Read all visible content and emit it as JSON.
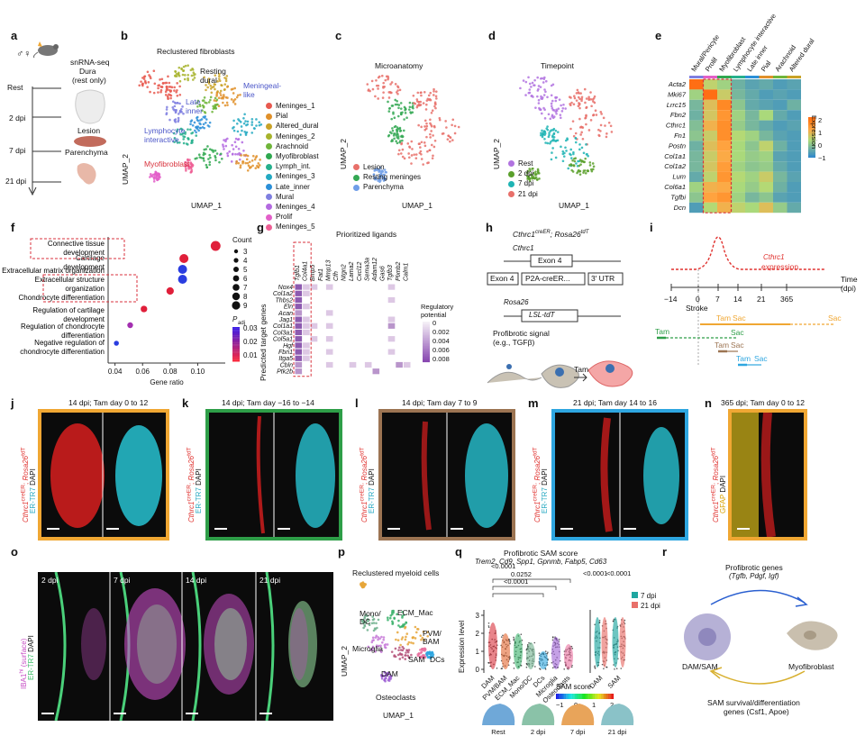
{
  "panels": {
    "a": {
      "label": "a",
      "sex": "♂♀",
      "method": "snRNA-seq",
      "dura": "Dura",
      "dura_note": "(rest only)",
      "lesion": "Lesion",
      "parenchyma": "Parenchyma",
      "timepoints": [
        "Rest",
        "2 dpi",
        "7 dpi",
        "21 dpi"
      ]
    },
    "b": {
      "label": "b",
      "title": "Reclustered fibroblasts",
      "xlabel": "UMAP_1",
      "ylabel": "UMAP_2",
      "annotations": [
        "Resting dural",
        "Meningeal-like",
        "Late inner",
        "Lymphocyte interactive",
        "Myofibroblast"
      ],
      "legend": [
        {
          "name": "Meninges_1",
          "color": "#e8594f"
        },
        {
          "name": "Pial",
          "color": "#e0902a"
        },
        {
          "name": "Altered_dural",
          "color": "#c9a227"
        },
        {
          "name": "Meninges_2",
          "color": "#a7b32c"
        },
        {
          "name": "Arachnoid",
          "color": "#6fb53a"
        },
        {
          "name": "Myofibroblast",
          "color": "#2fa84f"
        },
        {
          "name": "Lymph_int.",
          "color": "#26b08d"
        },
        {
          "name": "Meninges_3",
          "color": "#23a9c2"
        },
        {
          "name": "Late_inner",
          "color": "#2b8fd8"
        },
        {
          "name": "Mural",
          "color": "#7f7fe0"
        },
        {
          "name": "Meninges_4",
          "color": "#b36ae0"
        },
        {
          "name": "Prolif",
          "color": "#e35fc9"
        },
        {
          "name": "Meninges_5",
          "color": "#ee5f95"
        }
      ]
    },
    "c": {
      "label": "c",
      "title": "Microanatomy",
      "xlabel": "UMAP_1",
      "ylabel": "UMAP_2",
      "legend": [
        {
          "name": "Lesion",
          "color": "#e8706a"
        },
        {
          "name": "Resting meninges",
          "color": "#34a853"
        },
        {
          "name": "Parenchyma",
          "color": "#6f9de8"
        }
      ]
    },
    "d": {
      "label": "d",
      "title": "Timepoint",
      "xlabel": "UMAP_1",
      "ylabel": "UMAP_2",
      "legend": [
        {
          "name": "Rest",
          "color": "#b173e0"
        },
        {
          "name": "2 dpi",
          "color": "#5aa02c"
        },
        {
          "name": "7 dpi",
          "color": "#1fb4b4"
        },
        {
          "name": "21 dpi",
          "color": "#e8706a"
        }
      ]
    },
    "e": {
      "label": "e",
      "columns": [
        "Mural/Pericyte",
        "Prolif",
        "Myofibroblast",
        "Lymphocyte interactive",
        "Late inner",
        "Pial",
        "Arachnoid",
        "Altered dural"
      ],
      "col_colors": [
        "#7f7fe0",
        "#e35fc9",
        "#2fa84f",
        "#26b08d",
        "#2b8fd8",
        "#e0902a",
        "#6fb53a",
        "#c9a227"
      ],
      "rows": [
        "Acta2",
        "Mki67",
        "Lrrc15",
        "Fbn2",
        "Cthrc1",
        "Fn1",
        "Postn",
        "Col1a1",
        "Col1a2",
        "Lum",
        "Col6a1",
        "Tgfbi",
        "Dcn"
      ],
      "scale_title": "Expression",
      "scale_ticks": [
        "2",
        "1",
        "0",
        "−1"
      ]
    },
    "f": {
      "label": "f",
      "xlabel": "Gene ratio",
      "xticks": [
        "0.04",
        "0.06",
        "0.08",
        "0.10"
      ],
      "terms": [
        "Connective tissue development",
        "Cartilage development",
        "Extracellular matrix organization",
        "Extracellular structure organization",
        "Chondrocyte differentiation",
        "Regulation of cartilage development",
        "Regulation of chondrocyte differentiation",
        "Negative regulation of chondrocyte differentiation"
      ],
      "count_title": "Count",
      "count_values": [
        "3",
        "4",
        "5",
        "6",
        "7",
        "8",
        "9"
      ],
      "padj_title": "P",
      "padj_sub": "adj",
      "padj_ticks": [
        "0.03",
        "0.02",
        "0.01"
      ]
    },
    "g": {
      "label": "g",
      "title": "Prioritized ligands",
      "ylabel": "Predicted target genes",
      "ligands": [
        "Tgfb1",
        "Col4a1",
        "Bmp5",
        "Fat1",
        "Mmp13",
        "Cfh",
        "Ntgn2",
        "Lama2",
        "Cxcl12",
        "Sema3a",
        "Adam12",
        "Gas6",
        "Tgfb3",
        "Plxnb2",
        "Calm1"
      ],
      "targets": [
        "Nox4",
        "Col1a2",
        "Thbs2",
        "Eln",
        "Acan",
        "Jag1",
        "Col1a1",
        "Col3a1",
        "Col5a1",
        "Hgf",
        "Fbn1",
        "Itga5",
        "Cbln",
        "Ptk2b"
      ],
      "scale_title": "Regulatory potential",
      "scale_ticks": [
        "0",
        "0.002",
        "0.004",
        "0.006",
        "0.008"
      ]
    },
    "h": {
      "label": "h",
      "title": "Cthrc1",
      "title_sup": "creER",
      "title2": "; Rosa26",
      "title2_sup": "tdT",
      "gene1": "Cthrc1",
      "exon4": "Exon 4",
      "exon4b": "Exon 4",
      "p2a": "P2A-creER...",
      "utr": "3′ UTR",
      "rosa": "Rosa26",
      "lsl": "LSL-tdT",
      "signal": "Profibrotic signal",
      "signal_eg": "(e.g., TGFβ)",
      "tam": "Tam"
    },
    "i": {
      "label": "i",
      "expr_gene": "Cthrc1",
      "expr_word": "expression",
      "time_label": "Time",
      "time_unit": "(dpi)",
      "stroke": "Stroke",
      "ticks": [
        "−14",
        "0",
        "7",
        "14",
        "21",
        "365"
      ],
      "tam": "Tam",
      "sac": "Sac"
    },
    "j": {
      "label": "j",
      "title": "14 dpi; Tam day 0 to 12",
      "border": "#f0a733"
    },
    "k": {
      "label": "k",
      "title": "14 dpi; Tam day −16 to −14",
      "border": "#2e9e48"
    },
    "l": {
      "label": "l",
      "title": "14 dpi; Tam day 7 to 9",
      "border": "#9c7452"
    },
    "m": {
      "label": "m",
      "title": "21 dpi; Tam day 14 to 16",
      "border": "#2ea6e0"
    },
    "n": {
      "label": "n",
      "title": "365 dpi; Tam day 0 to 12",
      "border": "#f0a733"
    },
    "stain": {
      "gene": "Cthrc1",
      "gene_sup": "creER",
      "sep": "; ",
      "rosa": "Rosa26",
      "rosa_sup": "tdT",
      "ertr7": "ER-TR7",
      "dapi": "DAPI",
      "gfap": "GFAP"
    },
    "o": {
      "label": "o",
      "timepoints": [
        "2 dpi",
        "7 dpi",
        "14 dpi",
        "21 dpi"
      ],
      "iba1": "IBA1",
      "iba1_sup": "hi",
      "surface": "(surface)",
      "ertr7": "ER-TR7",
      "dapi": "DAPI"
    },
    "p": {
      "label": "p",
      "title": "Reclustered myeloid cells",
      "xlabel": "UMAP_1",
      "ylabel": "UMAP_2",
      "clusters": [
        "Mono/ DC",
        "ECM_Mac",
        "PVM/ BAM",
        "Microglia",
        "SAM",
        "DCs",
        "DAM",
        "Osteoclasts"
      ]
    },
    "q": {
      "label": "q",
      "title": "Profibrotic SAM score",
      "genes": "Trem2, Cd9, Spp1, Gpnmb, Fabp5, Cd63",
      "pvals": [
        "<0.0001",
        "0.0252",
        "<0.0001",
        "<0.0001",
        "<0.0001"
      ],
      "ylabel": "Expression level",
      "yticks": [
        "3",
        "2",
        "1",
        "0"
      ],
      "groups": [
        "DAM",
        "PVM/BAM",
        "ECM_Mac",
        "Mono/DC",
        "DCs",
        "Microglia",
        "Osteoclasts"
      ],
      "groups2": [
        "DAM",
        "SAM"
      ],
      "legend": [
        {
          "name": "7 dpi",
          "color": "#1fa6a0"
        },
        {
          "name": "21 dpi",
          "color": "#e8706a"
        }
      ],
      "score_title": "SAM score",
      "score_ticks": [
        "−1",
        "0",
        "1",
        "2"
      ],
      "spatial_labels": [
        "Rest",
        "2 dpi",
        "7 dpi",
        "21 dpi"
      ]
    },
    "r": {
      "label": "r",
      "top": "Profibrotic genes",
      "top_genes": "(Tgfb, Pdgf, Igf)",
      "left": "DAM/SAM",
      "right": "Myofibroblast",
      "bottom1": "SAM survival/differentiation",
      "bottom2": "genes (Csf1, Apoe)"
    }
  }
}
